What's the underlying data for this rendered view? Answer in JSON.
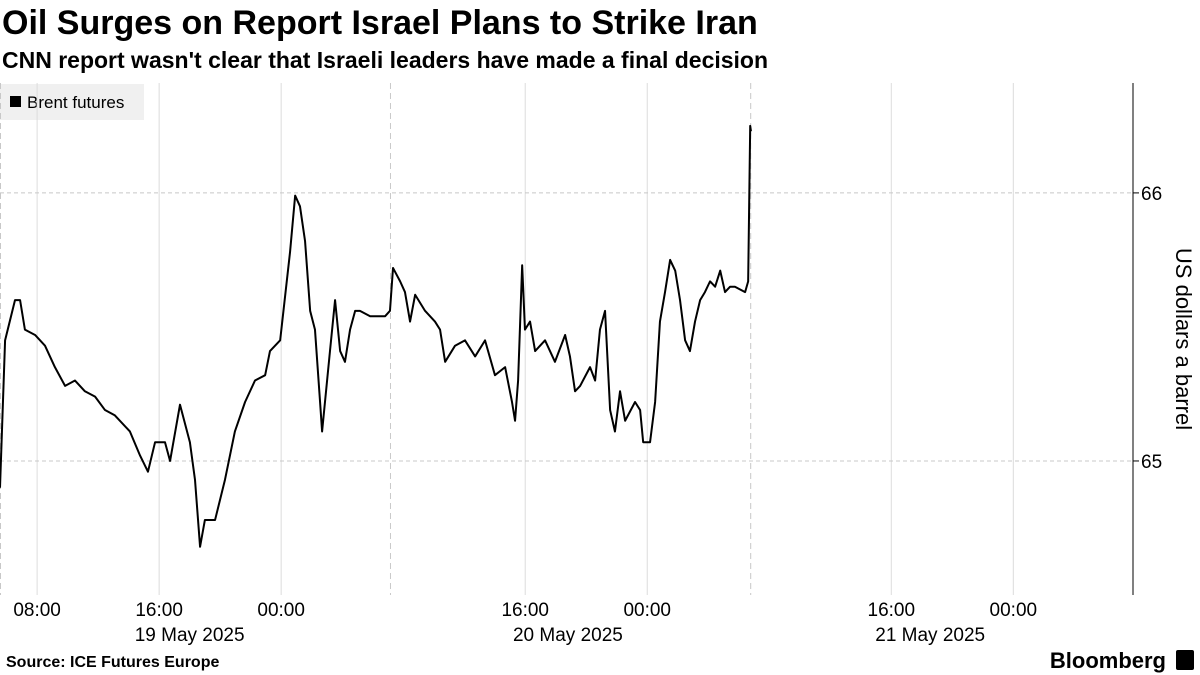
{
  "chart_data": {
    "type": "line",
    "title": "Oil Surges on Report Israel Plans to Strike Iran",
    "subtitle": "CNN report wasn't clear that Israeli leaders have made a final decision",
    "y_axis_label": "US dollars a barrel",
    "source": "Source: ICE Futures Europe",
    "brand": "Bloomberg",
    "x": [
      "2025-05-19T05:34",
      "2025-05-19T05:54",
      "2025-05-19T06:33",
      "2025-05-19T06:53",
      "2025-05-19T07:12",
      "2025-05-19T07:52",
      "2025-05-19T08:31",
      "2025-05-19T09:10",
      "2025-05-19T09:50",
      "2025-05-19T10:29",
      "2025-05-19T11:08",
      "2025-05-19T11:48",
      "2025-05-19T12:27",
      "2025-05-19T13:06",
      "2025-05-19T14:05",
      "2025-05-19T14:45",
      "2025-05-19T15:16",
      "2025-05-19T15:44",
      "2025-05-19T16:23",
      "2025-05-19T16:43",
      "2025-05-19T17:22",
      "2025-05-19T18:01",
      "2025-05-19T18:21",
      "2025-05-19T18:41",
      "2025-05-19T19:00",
      "2025-05-19T19:40",
      "2025-05-19T20:19",
      "2025-05-19T20:58",
      "2025-05-19T21:38",
      "2025-05-19T22:17",
      "2025-05-19T22:57",
      "2025-05-19T23:16",
      "2025-05-19T23:56",
      "2025-05-20T00:35",
      "2025-05-20T00:55",
      "2025-05-20T01:14",
      "2025-05-20T01:34",
      "2025-05-20T01:54",
      "2025-05-20T02:13",
      "2025-05-20T02:33",
      "2025-05-20T02:41",
      "2025-05-20T03:12",
      "2025-05-20T03:32",
      "2025-05-20T03:52",
      "2025-05-20T04:11",
      "2025-05-20T04:31",
      "2025-05-20T04:51",
      "2025-05-20T05:10",
      "2025-05-20T05:50",
      "2025-05-20T06:49",
      "2025-05-20T07:08",
      "2025-05-20T07:20",
      "2025-05-20T07:48",
      "2025-05-20T08:07",
      "2025-05-20T08:27",
      "2025-05-20T08:47",
      "2025-05-20T09:26",
      "2025-05-20T10:05",
      "2025-05-20T10:25",
      "2025-05-20T10:45",
      "2025-05-20T11:24",
      "2025-05-20T12:03",
      "2025-05-20T12:43",
      "2025-05-20T13:22",
      "2025-05-20T14:01",
      "2025-05-20T14:41",
      "2025-05-20T15:08",
      "2025-05-20T15:20",
      "2025-05-20T15:32",
      "2025-05-20T15:48",
      "2025-05-20T15:59",
      "2025-05-20T16:19",
      "2025-05-20T16:39",
      "2025-05-20T17:18",
      "2025-05-20T17:57",
      "2025-05-20T18:37",
      "2025-05-20T18:56",
      "2025-05-20T19:16",
      "2025-05-20T19:36",
      "2025-05-20T20:15",
      "2025-05-20T20:35",
      "2025-05-20T20:54",
      "2025-05-20T21:14",
      "2025-05-20T21:34",
      "2025-05-20T21:53",
      "2025-05-20T22:13",
      "2025-05-20T22:33",
      "2025-05-20T23:12",
      "2025-05-20T23:32",
      "2025-05-20T23:44",
      "2025-05-21T00:11",
      "2025-05-21T00:31",
      "2025-05-21T00:50",
      "2025-05-21T01:10",
      "2025-05-21T01:30",
      "2025-05-21T01:50",
      "2025-05-21T02:09",
      "2025-05-21T02:29",
      "2025-05-21T02:48",
      "2025-05-21T03:08",
      "2025-05-21T03:28",
      "2025-05-21T03:47",
      "2025-05-21T04:07",
      "2025-05-21T04:27",
      "2025-05-21T04:47",
      "2025-05-21T05:06",
      "2025-05-21T05:26",
      "2025-05-21T05:45",
      "2025-05-21T06:25",
      "2025-05-21T06:37",
      "2025-05-21T06:45",
      "2025-05-21T06:48"
    ],
    "series": [
      {
        "name": "Brent futures",
        "color": "#000000",
        "values": [
          64.9,
          65.45,
          65.6,
          65.6,
          65.49,
          65.47,
          65.43,
          65.35,
          65.28,
          65.3,
          65.26,
          65.24,
          65.19,
          65.17,
          65.11,
          65.02,
          64.96,
          65.07,
          65.07,
          65.0,
          65.21,
          65.07,
          64.93,
          64.68,
          64.78,
          64.78,
          64.93,
          65.11,
          65.22,
          65.3,
          65.32,
          65.41,
          65.45,
          65.78,
          65.99,
          65.95,
          65.82,
          65.56,
          65.49,
          65.22,
          65.11,
          65.41,
          65.6,
          65.41,
          65.37,
          65.49,
          65.56,
          65.56,
          65.54,
          65.54,
          65.56,
          65.72,
          65.67,
          65.63,
          65.52,
          65.62,
          65.56,
          65.52,
          65.49,
          65.37,
          65.43,
          65.45,
          65.39,
          65.45,
          65.32,
          65.35,
          65.22,
          65.15,
          65.3,
          65.73,
          65.49,
          65.52,
          65.41,
          65.45,
          65.37,
          65.47,
          65.39,
          65.26,
          65.28,
          65.35,
          65.3,
          65.49,
          65.56,
          65.19,
          65.11,
          65.26,
          65.15,
          65.22,
          65.19,
          65.07,
          65.07,
          65.22,
          65.52,
          65.63,
          65.75,
          65.71,
          65.6,
          65.45,
          65.41,
          65.52,
          65.6,
          65.63,
          65.67,
          65.65,
          65.71,
          65.63,
          65.65,
          65.65,
          65.63,
          65.67,
          66.25,
          66.23
        ]
      }
    ],
    "xlim": [
      "2025-05-19T05:34",
      "2025-05-22T07:39"
    ],
    "xticks": [
      {
        "value": "2025-05-19T08:00",
        "label": "08:00"
      },
      {
        "value": "2025-05-19T16:00",
        "label": "16:00"
      },
      {
        "value": "2025-05-20T00:00",
        "label": "00:00"
      },
      {
        "value": "2025-05-20T16:00",
        "label": "16:00"
      },
      {
        "value": "2025-05-21T00:00",
        "label": "00:00"
      },
      {
        "value": "2025-05-21T16:00",
        "label": "16:00"
      },
      {
        "value": "2025-05-22T00:00",
        "label": "00:00"
      }
    ],
    "date_labels": [
      {
        "value": "2025-05-19T18:00",
        "label": "19 May 2025"
      },
      {
        "value": "2025-05-20T18:48",
        "label": "20 May 2025"
      },
      {
        "value": "2025-05-21T18:33",
        "label": "21 May 2025"
      }
    ],
    "session_lines": [
      "2025-05-19T05:34",
      "2025-05-20T07:08",
      "2025-05-21T06:45"
    ],
    "ylim": [
      64.5,
      66.41
    ],
    "yticks": [
      65,
      66
    ],
    "grid": true
  }
}
